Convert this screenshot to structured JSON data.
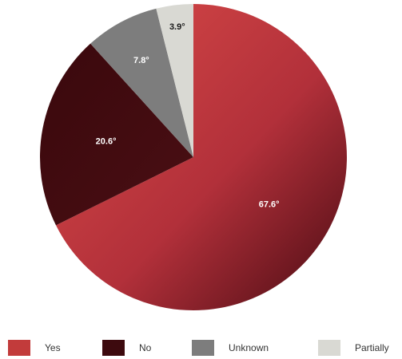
{
  "chart_data": {
    "type": "pie",
    "categories": [
      "Yes",
      "No",
      "Unknown",
      "Partially"
    ],
    "values": [
      67.6,
      20.6,
      7.8,
      3.9
    ],
    "value_labels": [
      "67.6°",
      "20.6°",
      "7.8°",
      "3.9°"
    ],
    "colors": [
      "#c23b3b",
      "#3d0a0e",
      "#7d7d7d",
      "#d9d9d3"
    ],
    "label_colors": [
      "#ffffff",
      "#ffffff",
      "#ffffff",
      "#1a1a1a"
    ],
    "start_angle": "12 o'clock",
    "direction": "clockwise",
    "legend_position": "bottom"
  }
}
